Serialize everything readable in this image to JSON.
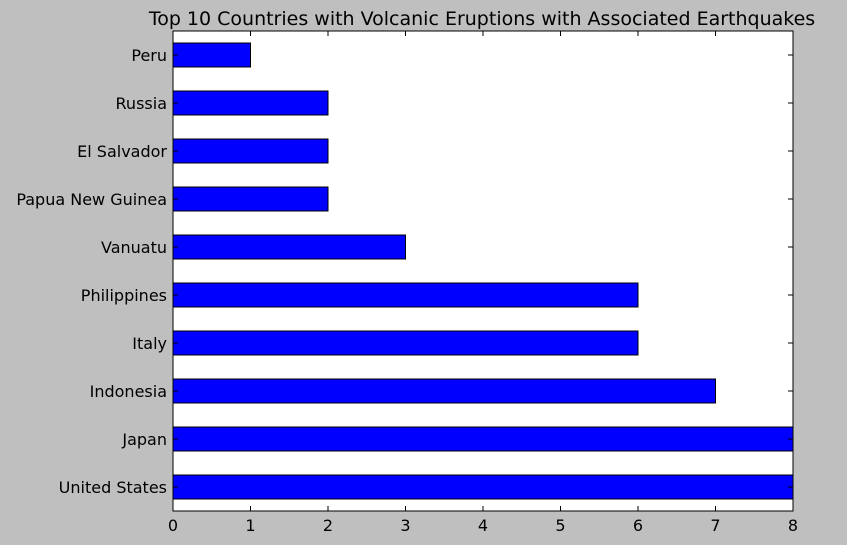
{
  "chart_data": {
    "type": "bar",
    "orientation": "horizontal",
    "title": "Top 10 Countries with Volcanic Eruptions with Associated Earthquakes",
    "xlabel": "",
    "ylabel": "",
    "categories": [
      "Peru",
      "Russia",
      "El Salvador",
      "Papua New Guinea",
      "Vanuatu",
      "Philippines",
      "Italy",
      "Indonesia",
      "Japan",
      "United States"
    ],
    "values": [
      1,
      2,
      2,
      2,
      3,
      6,
      6,
      7,
      8,
      8
    ],
    "xlim": [
      0,
      8
    ],
    "xticks": [
      "0",
      "1",
      "2",
      "3",
      "4",
      "5",
      "6",
      "7",
      "8"
    ],
    "grid": false,
    "legend": "none",
    "colors": {
      "bar": "#0000ff",
      "figure_background": "#bfbfbf",
      "plot_background": "#ffffff"
    }
  }
}
